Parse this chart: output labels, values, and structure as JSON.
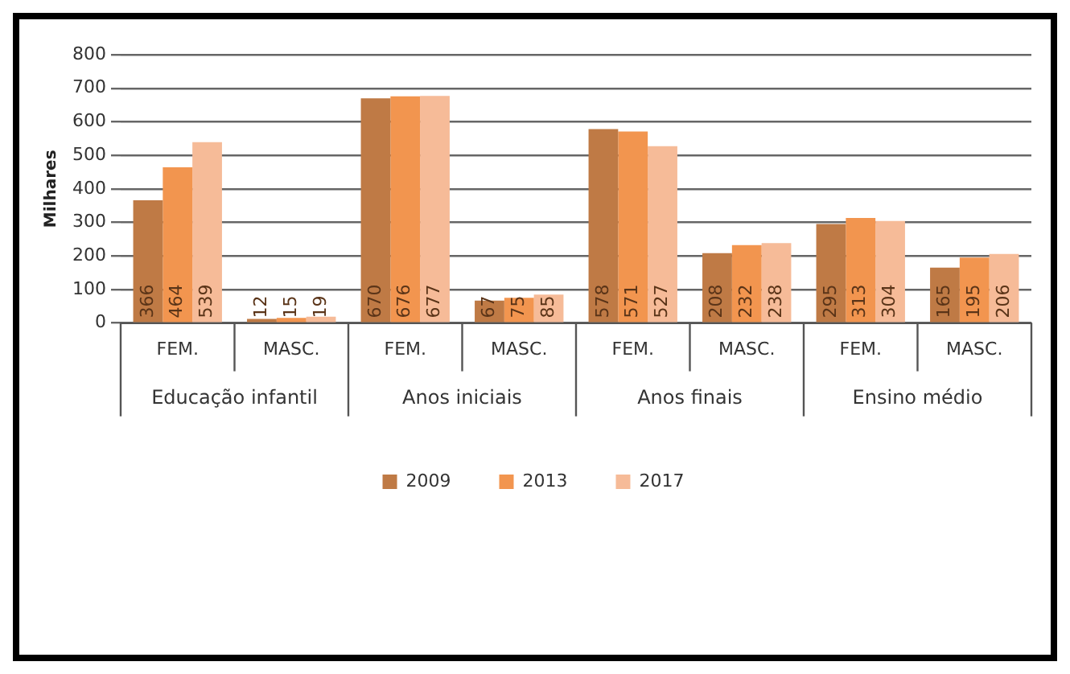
{
  "chart_data": {
    "type": "bar",
    "ylabel": "Milhares",
    "categories": [
      "FEM.",
      "MASC.",
      "FEM.",
      "MASC.",
      "FEM.",
      "MASC.",
      "FEM.",
      "MASC."
    ],
    "annotations": [
      "Educação infantil",
      "Anos iniciais",
      "Anos finais",
      "Ensino médio"
    ],
    "series": [
      {
        "name": "2009",
        "color": "#bf7a45",
        "values": [
          366,
          12,
          670,
          67,
          578,
          208,
          295,
          165
        ]
      },
      {
        "name": "2013",
        "color": "#f2954f",
        "values": [
          464,
          15,
          676,
          75,
          571,
          232,
          313,
          195
        ]
      },
      {
        "name": "2017",
        "color": "#f6bb98",
        "values": [
          539,
          19,
          677,
          85,
          527,
          238,
          304,
          206
        ]
      }
    ],
    "ylim": [
      0,
      800
    ],
    "yticks": [
      0,
      100,
      200,
      300,
      400,
      500,
      600,
      700,
      800
    ],
    "grid": "y",
    "legend": "bottom",
    "data_labels": true
  }
}
